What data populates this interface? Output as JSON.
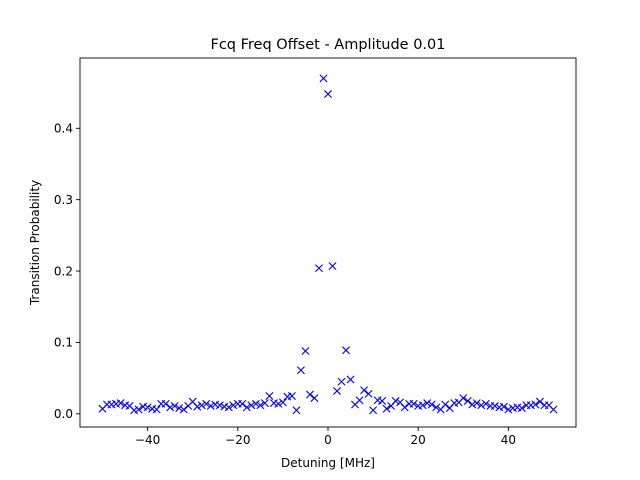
{
  "chart_data": {
    "type": "scatter",
    "title": "Fcq Freq Offset - Amplitude 0.01",
    "xlabel": "Detuning [MHz]",
    "ylabel": "Transition Probability",
    "xlim": [
      -55,
      55
    ],
    "ylim": [
      -0.0185,
      0.4985
    ],
    "xticks": [
      -40,
      -20,
      0,
      20,
      40
    ],
    "yticks": [
      0.0,
      0.1,
      0.2,
      0.3,
      0.4
    ],
    "xtick_labels": [
      "−40",
      "−20",
      "0",
      "20",
      "40"
    ],
    "ytick_labels": [
      "0.0",
      "0.1",
      "0.2",
      "0.3",
      "0.4"
    ],
    "grid": false,
    "marker": "x",
    "color": "#0000ff",
    "series": [
      {
        "x": [
          -50,
          -49,
          -48,
          -47,
          -46,
          -45,
          -44,
          -43,
          -42,
          -41,
          -40,
          -39,
          -38,
          -37,
          -36,
          -35,
          -34,
          -33,
          -32,
          -31,
          -30,
          -29,
          -28,
          -27,
          -26,
          -25,
          -24,
          -23,
          -22,
          -21,
          -20,
          -19,
          -18,
          -17,
          -16,
          -15,
          -14,
          -13,
          -12,
          -11,
          -10,
          -9,
          -8,
          -7,
          -6,
          -5,
          -4,
          -3,
          -2,
          -1,
          0,
          1,
          2,
          3,
          4,
          5,
          6,
          7,
          8,
          9,
          10,
          11,
          12,
          13,
          14,
          15,
          16,
          17,
          18,
          19,
          20,
          21,
          22,
          23,
          24,
          25,
          26,
          27,
          28,
          29,
          30,
          31,
          32,
          33,
          34,
          35,
          36,
          37,
          38,
          39,
          40,
          41,
          42,
          43,
          44,
          45,
          46,
          47,
          48,
          49,
          50
        ],
        "y": [
          0.007,
          0.013,
          0.013,
          0.014,
          0.015,
          0.012,
          0.011,
          0.005,
          0.006,
          0.01,
          0.009,
          0.007,
          0.006,
          0.014,
          0.014,
          0.009,
          0.011,
          0.008,
          0.006,
          0.011,
          0.017,
          0.01,
          0.012,
          0.014,
          0.011,
          0.013,
          0.012,
          0.01,
          0.009,
          0.012,
          0.014,
          0.014,
          0.009,
          0.012,
          0.014,
          0.012,
          0.015,
          0.025,
          0.015,
          0.014,
          0.016,
          0.024,
          0.025,
          0.005,
          0.061,
          0.088,
          0.027,
          0.022,
          0.204,
          0.47,
          0.448,
          0.207,
          0.032,
          0.045,
          0.089,
          0.048,
          0.013,
          0.019,
          0.033,
          0.028,
          0.005,
          0.019,
          0.018,
          0.007,
          0.011,
          0.018,
          0.016,
          0.009,
          0.014,
          0.014,
          0.011,
          0.012,
          0.015,
          0.013,
          0.009,
          0.006,
          0.013,
          0.008,
          0.015,
          0.016,
          0.022,
          0.018,
          0.013,
          0.015,
          0.012,
          0.014,
          0.011,
          0.011,
          0.009,
          0.01,
          0.006,
          0.008,
          0.009,
          0.008,
          0.012,
          0.012,
          0.013,
          0.017,
          0.012,
          0.012,
          0.006
        ]
      }
    ]
  }
}
